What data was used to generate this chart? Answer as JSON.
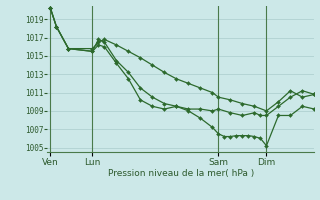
{
  "background_color": "#cce8e8",
  "grid_color": "#aacccc",
  "line_color": "#2d6a2d",
  "marker_color": "#2d6a2d",
  "xlabel": "Pression niveau de la mer( hPa )",
  "ylim": [
    1004.5,
    1020.5
  ],
  "yticks": [
    1005,
    1007,
    1009,
    1011,
    1013,
    1015,
    1017,
    1019
  ],
  "x_day_labels": [
    [
      "Ven",
      0
    ],
    [
      "Lun",
      7
    ],
    [
      "Sam",
      28
    ],
    [
      "Dim",
      36
    ]
  ],
  "xlim": [
    -0.5,
    44
  ],
  "series": [
    {
      "x": [
        0,
        1,
        3,
        7,
        8,
        9,
        11,
        13,
        15,
        17,
        19,
        21,
        23,
        25,
        27,
        28,
        30,
        32,
        34,
        36,
        38,
        40,
        42,
        44
      ],
      "y": [
        1020.2,
        1018.2,
        1015.8,
        1015.8,
        1016.5,
        1016.8,
        1016.2,
        1015.5,
        1014.8,
        1014.0,
        1013.2,
        1012.5,
        1012.0,
        1011.5,
        1011.0,
        1010.5,
        1010.2,
        1009.8,
        1009.5,
        1009.0,
        1010.0,
        1011.2,
        1010.5,
        1010.8
      ]
    },
    {
      "x": [
        0,
        1,
        3,
        7,
        8,
        9,
        11,
        13,
        15,
        17,
        19,
        21,
        23,
        25,
        27,
        28,
        29,
        30,
        31,
        32,
        33,
        34,
        35,
        36,
        38,
        40,
        42,
        44
      ],
      "y": [
        1020.2,
        1018.2,
        1015.8,
        1015.5,
        1016.8,
        1016.5,
        1014.5,
        1013.2,
        1011.5,
        1010.5,
        1009.8,
        1009.5,
        1009.0,
        1008.2,
        1007.2,
        1006.5,
        1006.2,
        1006.2,
        1006.3,
        1006.3,
        1006.3,
        1006.2,
        1006.0,
        1005.2,
        1008.5,
        1008.5,
        1009.5,
        1009.2
      ]
    },
    {
      "x": [
        0,
        1,
        3,
        7,
        8,
        9,
        11,
        13,
        15,
        17,
        19,
        21,
        23,
        25,
        27,
        28,
        30,
        32,
        34,
        35,
        36,
        38,
        40,
        42,
        44
      ],
      "y": [
        1020.2,
        1018.2,
        1015.8,
        1015.5,
        1016.2,
        1016.0,
        1014.2,
        1012.5,
        1010.2,
        1009.5,
        1009.2,
        1009.5,
        1009.2,
        1009.2,
        1009.0,
        1009.2,
        1008.8,
        1008.5,
        1008.8,
        1008.5,
        1008.5,
        1009.5,
        1010.5,
        1011.2,
        1010.8
      ]
    }
  ]
}
